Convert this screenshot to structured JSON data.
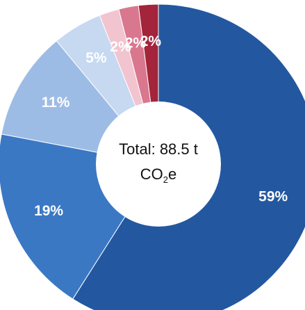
{
  "chart_data": {
    "type": "pie",
    "donut": true,
    "slices": [
      {
        "label": "59%",
        "value": 59,
        "color": "#2358a0"
      },
      {
        "label": "19%",
        "value": 19,
        "color": "#3b78c4"
      },
      {
        "label": "11%",
        "value": 11,
        "color": "#9dbce5"
      },
      {
        "label": "5%",
        "value": 5,
        "color": "#c6d9f1"
      },
      {
        "label": "2%",
        "value": 2,
        "color": "#f2c4d0"
      },
      {
        "label": "2%",
        "value": 2,
        "color": "#d9778f"
      },
      {
        "label": "2%",
        "value": 2,
        "color": "#a3243b"
      }
    ],
    "center": {
      "prefix": "Total: 88.5 t",
      "unit_main": "CO",
      "unit_sub": "2",
      "unit_suffix": "e"
    }
  }
}
